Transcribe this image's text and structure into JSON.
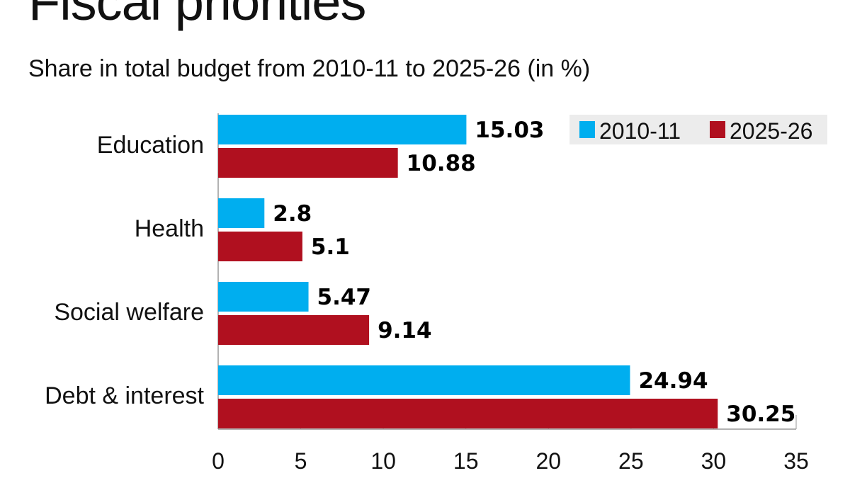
{
  "chart_data": {
    "type": "bar",
    "orientation": "horizontal",
    "title": "Fiscal priorities",
    "subtitle": "Share in total budget from 2010-11 to 2025-26 (in %)",
    "categories": [
      "Education",
      "Health",
      "Social welfare",
      "Debt & interest"
    ],
    "series": [
      {
        "name": "2010-11",
        "color": "#00AEEF",
        "values": [
          15.03,
          2.8,
          5.47,
          24.94
        ]
      },
      {
        "name": "2025-26",
        "color": "#B0101F",
        "values": [
          10.88,
          5.1,
          9.14,
          30.25
        ]
      }
    ],
    "data_labels": [
      [
        "15.03",
        "2.8",
        "5.47",
        "24.94"
      ],
      [
        "10.88",
        "5.1",
        "9.14",
        "30.25"
      ]
    ],
    "xlim": [
      0,
      35
    ],
    "xticks": [
      "0",
      "5",
      "10",
      "15",
      "20",
      "25",
      "30",
      "35"
    ],
    "xlabel": "",
    "ylabel": "",
    "grid": false,
    "legend_position": "top-right"
  }
}
